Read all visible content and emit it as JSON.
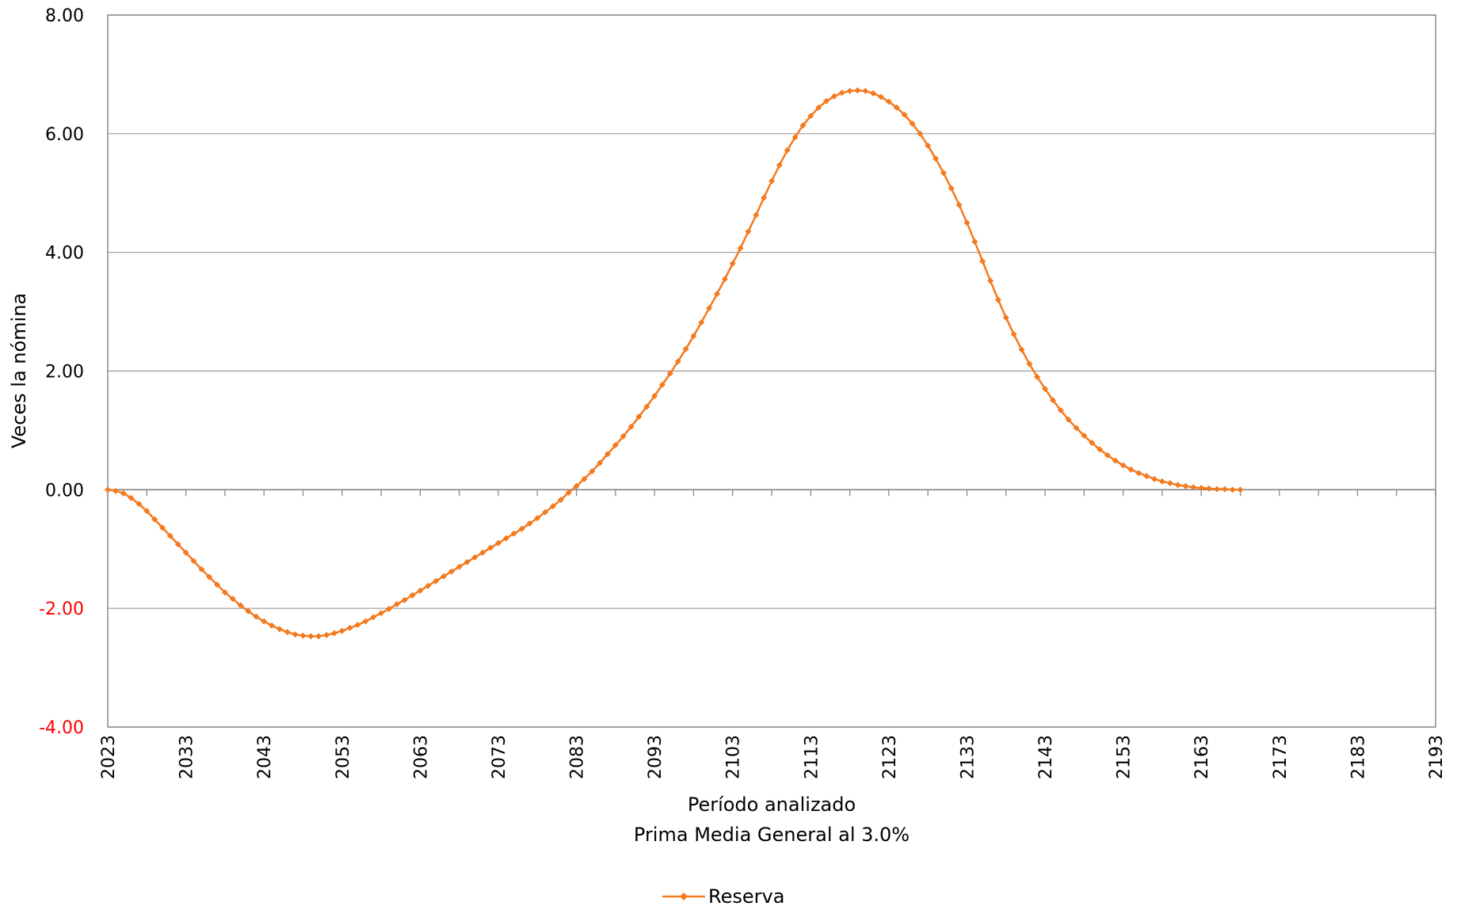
{
  "chart_data": {
    "type": "line",
    "ylabel": "Veces la nómina",
    "xlabel": "Período analizado",
    "subtitle": "Prima Media General al 3.0%",
    "xlim": [
      2023,
      2193
    ],
    "ylim": [
      -4,
      8
    ],
    "grid": true,
    "legend_position": "bottom",
    "y_ticks": [
      "8.00",
      "6.00",
      "4.00",
      "2.00",
      "0.00",
      "-2.00",
      "-4.00"
    ],
    "y_tick_values": [
      8,
      6,
      4,
      2,
      0,
      -2,
      -4
    ],
    "y_tick_colors": [
      "#000000",
      "#000000",
      "#000000",
      "#000000",
      "#000000",
      "#ff0000",
      "#ff0000"
    ],
    "x_ticks": [
      "2023",
      "2033",
      "2043",
      "2053",
      "2063",
      "2073",
      "2083",
      "2093",
      "2103",
      "2113",
      "2123",
      "2133",
      "2143",
      "2153",
      "2163",
      "2173",
      "2183",
      "2193"
    ],
    "x_tick_values": [
      2023,
      2033,
      2043,
      2053,
      2063,
      2073,
      2083,
      2093,
      2103,
      2113,
      2123,
      2133,
      2143,
      2153,
      2163,
      2173,
      2183,
      2193
    ],
    "series": [
      {
        "name": "Reserva",
        "color": "#f47a20",
        "marker": "diamond",
        "points": [
          [
            2023,
            0.0
          ],
          [
            2024,
            -0.02
          ],
          [
            2025,
            -0.06
          ],
          [
            2026,
            -0.14
          ],
          [
            2027,
            -0.24
          ],
          [
            2028,
            -0.36
          ],
          [
            2029,
            -0.5
          ],
          [
            2030,
            -0.64
          ],
          [
            2031,
            -0.78
          ],
          [
            2032,
            -0.92
          ],
          [
            2033,
            -1.06
          ],
          [
            2034,
            -1.2
          ],
          [
            2035,
            -1.34
          ],
          [
            2036,
            -1.47
          ],
          [
            2037,
            -1.6
          ],
          [
            2038,
            -1.73
          ],
          [
            2039,
            -1.84
          ],
          [
            2040,
            -1.95
          ],
          [
            2041,
            -2.05
          ],
          [
            2042,
            -2.14
          ],
          [
            2043,
            -2.22
          ],
          [
            2044,
            -2.29
          ],
          [
            2045,
            -2.35
          ],
          [
            2046,
            -2.4
          ],
          [
            2047,
            -2.44
          ],
          [
            2048,
            -2.46
          ],
          [
            2049,
            -2.47
          ],
          [
            2050,
            -2.47
          ],
          [
            2051,
            -2.45
          ],
          [
            2052,
            -2.42
          ],
          [
            2053,
            -2.38
          ],
          [
            2054,
            -2.33
          ],
          [
            2055,
            -2.28
          ],
          [
            2056,
            -2.22
          ],
          [
            2057,
            -2.15
          ],
          [
            2058,
            -2.08
          ],
          [
            2059,
            -2.01
          ],
          [
            2060,
            -1.93
          ],
          [
            2061,
            -1.86
          ],
          [
            2062,
            -1.78
          ],
          [
            2063,
            -1.7
          ],
          [
            2064,
            -1.62
          ],
          [
            2065,
            -1.54
          ],
          [
            2066,
            -1.46
          ],
          [
            2067,
            -1.38
          ],
          [
            2068,
            -1.3
          ],
          [
            2069,
            -1.22
          ],
          [
            2070,
            -1.14
          ],
          [
            2071,
            -1.06
          ],
          [
            2072,
            -0.98
          ],
          [
            2073,
            -0.9
          ],
          [
            2074,
            -0.82
          ],
          [
            2075,
            -0.74
          ],
          [
            2076,
            -0.66
          ],
          [
            2077,
            -0.57
          ],
          [
            2078,
            -0.48
          ],
          [
            2079,
            -0.38
          ],
          [
            2080,
            -0.28
          ],
          [
            2081,
            -0.17
          ],
          [
            2082,
            -0.05
          ],
          [
            2083,
            0.06
          ],
          [
            2084,
            0.18
          ],
          [
            2085,
            0.31
          ],
          [
            2086,
            0.45
          ],
          [
            2087,
            0.6
          ],
          [
            2088,
            0.75
          ],
          [
            2089,
            0.9
          ],
          [
            2090,
            1.06
          ],
          [
            2091,
            1.23
          ],
          [
            2092,
            1.4
          ],
          [
            2093,
            1.58
          ],
          [
            2094,
            1.77
          ],
          [
            2095,
            1.96
          ],
          [
            2096,
            2.16
          ],
          [
            2097,
            2.37
          ],
          [
            2098,
            2.59
          ],
          [
            2099,
            2.82
          ],
          [
            2100,
            3.06
          ],
          [
            2101,
            3.3
          ],
          [
            2102,
            3.55
          ],
          [
            2103,
            3.81
          ],
          [
            2104,
            4.07
          ],
          [
            2105,
            4.35
          ],
          [
            2106,
            4.63
          ],
          [
            2107,
            4.92
          ],
          [
            2108,
            5.2
          ],
          [
            2109,
            5.47
          ],
          [
            2110,
            5.72
          ],
          [
            2111,
            5.94
          ],
          [
            2112,
            6.14
          ],
          [
            2113,
            6.3
          ],
          [
            2114,
            6.44
          ],
          [
            2115,
            6.55
          ],
          [
            2116,
            6.63
          ],
          [
            2117,
            6.69
          ],
          [
            2118,
            6.72
          ],
          [
            2119,
            6.73
          ],
          [
            2120,
            6.72
          ],
          [
            2121,
            6.68
          ],
          [
            2122,
            6.62
          ],
          [
            2123,
            6.54
          ],
          [
            2124,
            6.44
          ],
          [
            2125,
            6.32
          ],
          [
            2126,
            6.17
          ],
          [
            2127,
            6.0
          ],
          [
            2128,
            5.8
          ],
          [
            2129,
            5.58
          ],
          [
            2130,
            5.34
          ],
          [
            2131,
            5.08
          ],
          [
            2132,
            4.8
          ],
          [
            2133,
            4.5
          ],
          [
            2134,
            4.18
          ],
          [
            2135,
            3.85
          ],
          [
            2136,
            3.52
          ],
          [
            2137,
            3.2
          ],
          [
            2138,
            2.9
          ],
          [
            2139,
            2.62
          ],
          [
            2140,
            2.36
          ],
          [
            2141,
            2.12
          ],
          [
            2142,
            1.9
          ],
          [
            2143,
            1.7
          ],
          [
            2144,
            1.51
          ],
          [
            2145,
            1.34
          ],
          [
            2146,
            1.18
          ],
          [
            2147,
            1.04
          ],
          [
            2148,
            0.91
          ],
          [
            2149,
            0.79
          ],
          [
            2150,
            0.68
          ],
          [
            2151,
            0.58
          ],
          [
            2152,
            0.49
          ],
          [
            2153,
            0.41
          ],
          [
            2154,
            0.34
          ],
          [
            2155,
            0.28
          ],
          [
            2156,
            0.23
          ],
          [
            2157,
            0.18
          ],
          [
            2158,
            0.14
          ],
          [
            2159,
            0.11
          ],
          [
            2160,
            0.08
          ],
          [
            2161,
            0.06
          ],
          [
            2162,
            0.04
          ],
          [
            2163,
            0.03
          ],
          [
            2164,
            0.02
          ],
          [
            2165,
            0.01
          ],
          [
            2166,
            0.01
          ],
          [
            2167,
            0.0
          ],
          [
            2168,
            0.0
          ]
        ]
      }
    ]
  }
}
